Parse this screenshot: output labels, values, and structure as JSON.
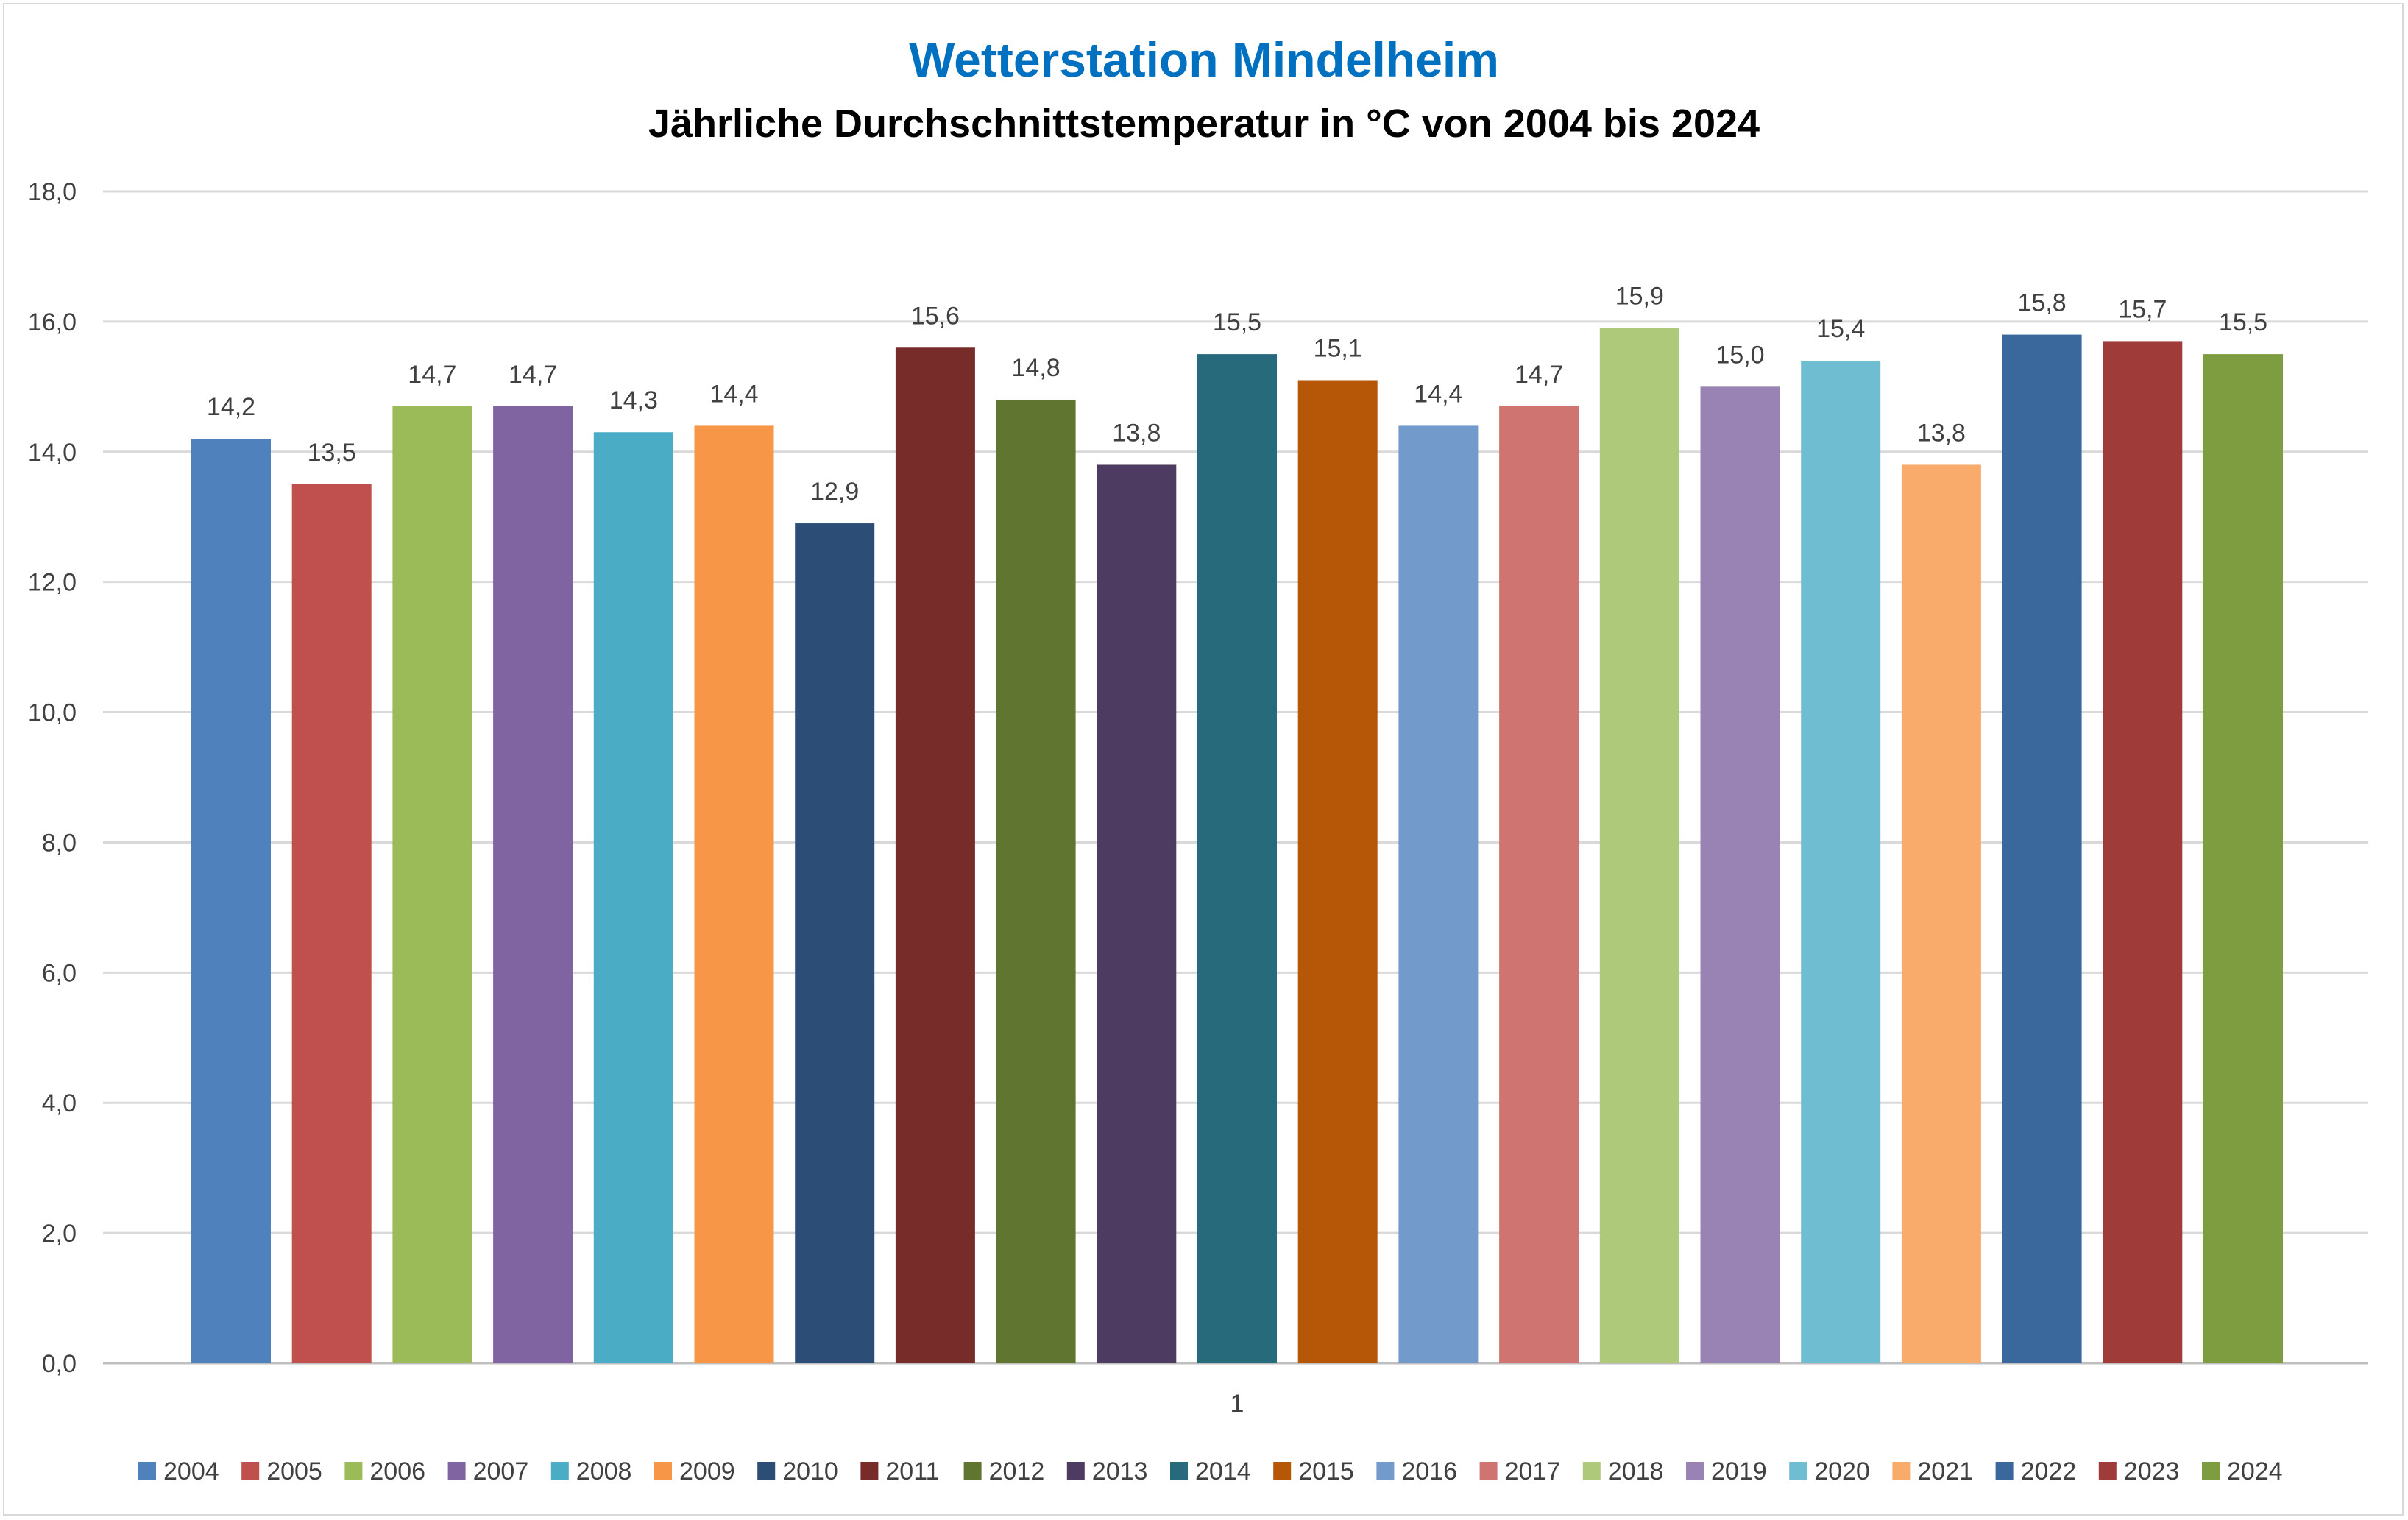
{
  "chart_data": {
    "type": "bar",
    "title": "Wetterstation Mindelheim",
    "subtitle": "Jährliche Durchschnittstemperatur in °C von 2004 bis 2024",
    "categories": [
      "1"
    ],
    "ylim": [
      0,
      18
    ],
    "yticks": [
      "0,0",
      "2,0",
      "4,0",
      "6,0",
      "8,0",
      "10,0",
      "12,0",
      "14,0",
      "16,0",
      "18,0"
    ],
    "ytick_values": [
      0,
      2,
      4,
      6,
      8,
      10,
      12,
      14,
      16,
      18
    ],
    "grid": true,
    "legend_position": "bottom",
    "series": [
      {
        "name": "2004",
        "value": 14.2,
        "label": "14,2",
        "color": "#4f81bd"
      },
      {
        "name": "2005",
        "value": 13.5,
        "label": "13,5",
        "color": "#c0504d"
      },
      {
        "name": "2006",
        "value": 14.7,
        "label": "14,7",
        "color": "#9bbb59"
      },
      {
        "name": "2007",
        "value": 14.7,
        "label": "14,7",
        "color": "#8064a2"
      },
      {
        "name": "2008",
        "value": 14.3,
        "label": "14,3",
        "color": "#4bacc6"
      },
      {
        "name": "2009",
        "value": 14.4,
        "label": "14,4",
        "color": "#f79646"
      },
      {
        "name": "2010",
        "value": 12.9,
        "label": "12,9",
        "color": "#2c4d75"
      },
      {
        "name": "2011",
        "value": 15.6,
        "label": "15,6",
        "color": "#772c2a"
      },
      {
        "name": "2012",
        "value": 14.8,
        "label": "14,8",
        "color": "#5f7530"
      },
      {
        "name": "2013",
        "value": 13.8,
        "label": "13,8",
        "color": "#4d3b62"
      },
      {
        "name": "2014",
        "value": 15.5,
        "label": "15,5",
        "color": "#276a7c"
      },
      {
        "name": "2015",
        "value": 15.1,
        "label": "15,1",
        "color": "#b65708"
      },
      {
        "name": "2016",
        "value": 14.4,
        "label": "14,4",
        "color": "#729aca"
      },
      {
        "name": "2017",
        "value": 14.7,
        "label": "14,7",
        "color": "#d07472"
      },
      {
        "name": "2018",
        "value": 15.9,
        "label": "15,9",
        "color": "#afc97a"
      },
      {
        "name": "2019",
        "value": 15.0,
        "label": "15,0",
        "color": "#9983b5"
      },
      {
        "name": "2020",
        "value": 15.4,
        "label": "15,4",
        "color": "#6fbdd1"
      },
      {
        "name": "2021",
        "value": 13.8,
        "label": "13,8",
        "color": "#f9ab6b"
      },
      {
        "name": "2022",
        "value": 15.8,
        "label": "15,8",
        "color": "#3a679c"
      },
      {
        "name": "2023",
        "value": 15.7,
        "label": "15,7",
        "color": "#9f3b38"
      },
      {
        "name": "2024",
        "value": 15.5,
        "label": "15,5",
        "color": "#7e9c40"
      }
    ]
  }
}
